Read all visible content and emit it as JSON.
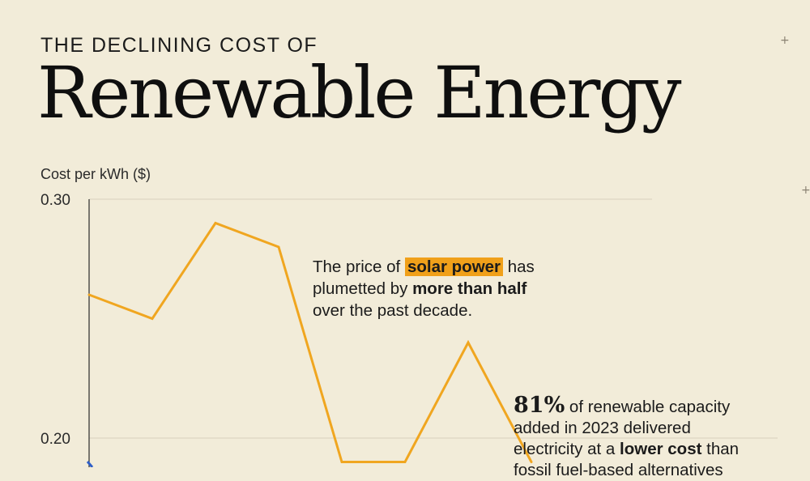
{
  "header": {
    "kicker": "THE DECLINING COST OF",
    "title": "Renewable Energy"
  },
  "decor": {
    "corner_marks": [
      "+",
      "+"
    ]
  },
  "chart_data": {
    "type": "line",
    "ylabel": "Cost per kWh ($)",
    "ylim": [
      0.16,
      0.3
    ],
    "yticks": [
      0.3,
      0.2
    ],
    "ytick_labels": [
      "0.30",
      "0.20"
    ],
    "grid": true,
    "x": [
      0,
      1,
      2,
      3,
      4,
      5,
      6,
      7,
      8
    ],
    "series": [
      {
        "color": "#f0a620",
        "values": [
          0.26,
          0.25,
          0.29,
          0.28,
          0.19,
          0.19,
          0.24,
          0.19,
          null
        ]
      }
    ],
    "partial_series_color": "#2f5fc8"
  },
  "annotations": {
    "solar": {
      "part1": "The price of ",
      "highlight": "solar power",
      "part2": " has",
      "part3": "plumetted by ",
      "bold": "more than half",
      "part4": "over the past decade."
    },
    "capacity": {
      "big": "81%",
      "part1": " of renewable capacity",
      "part2": "added in 2023 delivered",
      "part3": "electricity at a ",
      "bold": "lower cost",
      "part4": " than",
      "part5": "fossil fuel-based alternatives"
    }
  },
  "colors": {
    "background": "#f2ecd9",
    "solar": "#f0a620",
    "highlight": "#f0a01a",
    "grid": "#d8d1bd",
    "axis": "#2a2a2a"
  }
}
